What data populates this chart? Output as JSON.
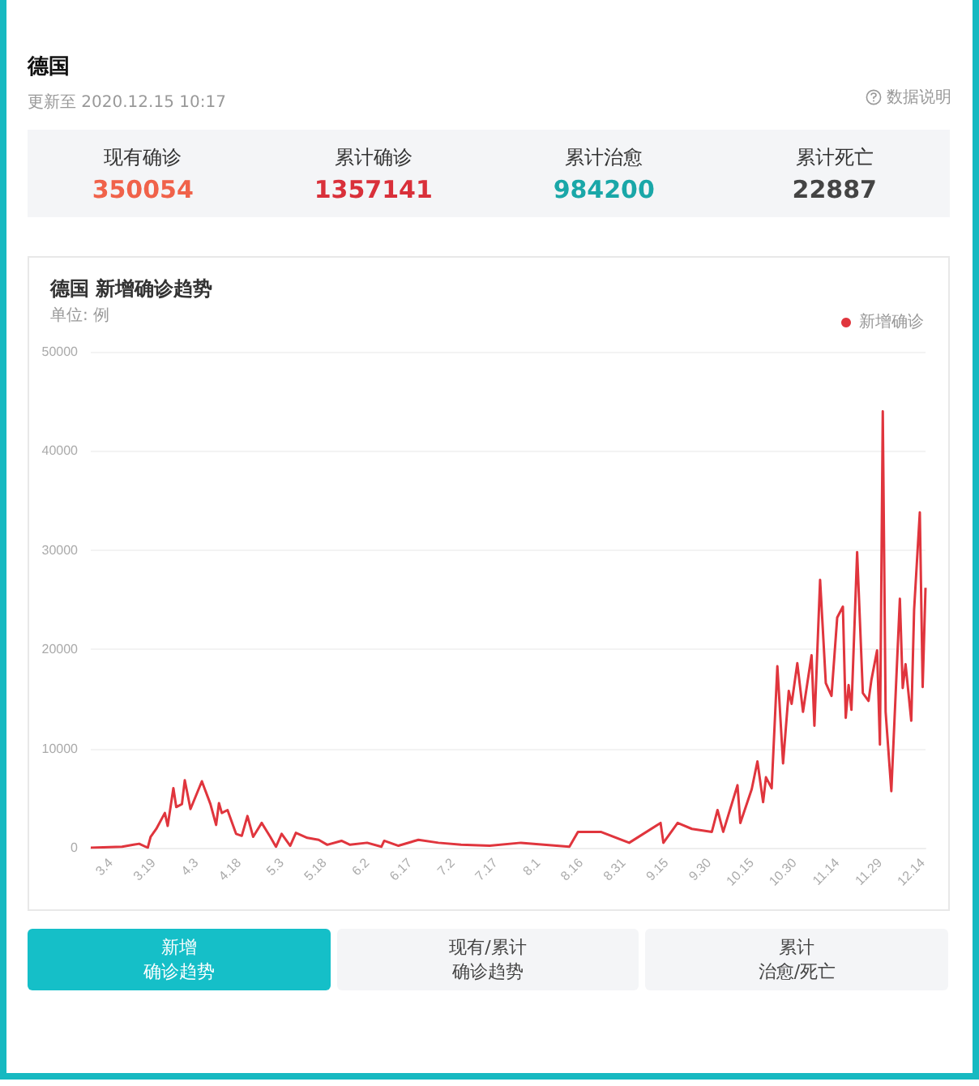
{
  "chart_data": [
    {
      "type": "other",
      "title": "德国",
      "subtitle": "更新至 2020.12.15 10:17",
      "annotations": [
        "数据说明"
      ],
      "categories": [
        "现有确诊",
        "累计确诊",
        "累计治愈",
        "累计死亡"
      ],
      "values": [
        350054,
        1357141,
        984200,
        22887
      ],
      "data_labels": true
    },
    {
      "type": "line",
      "title": "德国 新增确诊趋势",
      "subtitle": "单位: 例",
      "legend": "top right",
      "grid": "y",
      "marker": "none",
      "line_style": "solid",
      "annotations": [
        "新增",
        "确诊趋势",
        "现有/累计",
        "确诊趋势",
        "累计",
        "治愈/死亡"
      ],
      "xlim": [
        "--02-26",
        "--12-15"
      ],
      "ylim": [
        0,
        50000
      ],
      "yticks": [
        0,
        10000,
        20000,
        30000,
        40000,
        50000
      ],
      "xticks": [
        {
          "value": "--03-04",
          "label": "3.4"
        },
        {
          "value": "--03-19",
          "label": "3.19"
        },
        {
          "value": "--04-03",
          "label": "4.3"
        },
        {
          "value": "--04-18",
          "label": "4.18"
        },
        {
          "value": "--05-03",
          "label": "5.3"
        },
        {
          "value": "--05-18",
          "label": "5.18"
        },
        {
          "value": "--06-02",
          "label": "6.2"
        },
        {
          "value": "--06-17",
          "label": "6.17"
        },
        {
          "value": "--07-02",
          "label": "7.2"
        },
        {
          "value": "--07-17",
          "label": "7.17"
        },
        {
          "value": "--08-01",
          "label": "8.1"
        },
        {
          "value": "--08-16",
          "label": "8.16"
        },
        {
          "value": "--08-31",
          "label": "8.31"
        },
        {
          "value": "--09-15",
          "label": "9.15"
        },
        {
          "value": "--09-30",
          "label": "9.30"
        },
        {
          "value": "--10-15",
          "label": "10.15"
        },
        {
          "value": "--10-30",
          "label": "10.30"
        },
        {
          "value": "--11-14",
          "label": "11.14"
        },
        {
          "value": "--11-29",
          "label": "11.29"
        },
        {
          "value": "--12-14",
          "label": "12.14"
        }
      ],
      "series": [
        {
          "name": "新增确诊",
          "color": "#e0353d",
          "x": [
            "--02-26",
            "--03-08",
            "--03-12",
            "--03-14",
            "--03-17",
            "--03-18",
            "--03-20",
            "--03-23",
            "--03-24",
            "--03-26",
            "--03-27",
            "--03-29",
            "--03-30",
            "--04-01",
            "--04-05",
            "--04-08",
            "--04-10",
            "--04-11",
            "--04-12",
            "--04-14",
            "--04-17",
            "--04-19",
            "--04-21",
            "--04-23",
            "--04-26",
            "--04-29",
            "--05-01",
            "--05-03",
            "--05-06",
            "--05-08",
            "--05-12",
            "--05-16",
            "--05-19",
            "--05-24",
            "--05-27",
            "--06-02",
            "--06-07",
            "--06-08",
            "--06-13",
            "--06-20",
            "--06-27",
            "--07-05",
            "--07-15",
            "--07-26",
            "--08-12",
            "--08-15",
            "--08-23",
            "--09-02",
            "--09-13",
            "--09-14",
            "--09-19",
            "--09-24",
            "--10-01",
            "--10-03",
            "--10-05",
            "--10-10",
            "--10-11",
            "--10-15",
            "--10-17",
            "--10-19",
            "--10-20",
            "--10-22",
            "--10-24",
            "--10-26",
            "--10-28",
            "--10-29",
            "--10-31",
            "--11-02",
            "--11-05",
            "--11-06",
            "--11-08",
            "--11-10",
            "--11-12",
            "--11-14",
            "--11-16",
            "--11-17",
            "--11-18",
            "--11-19",
            "--11-21",
            "--11-23",
            "--11-25",
            "--11-26",
            "--11-28",
            "--11-29",
            "--11-30",
            "--12-01",
            "--12-03",
            "--12-06",
            "--12-07",
            "--12-08",
            "--12-10",
            "--12-11",
            "--12-13",
            "--12-14",
            "--12-15"
          ],
          "values": [
            0,
            100,
            300,
            400,
            0,
            1100,
            1900,
            3500,
            2200,
            6000,
            4100,
            4400,
            6800,
            3900,
            6700,
            4400,
            2300,
            4500,
            3500,
            3800,
            1400,
            1200,
            3200,
            1100,
            2500,
            1100,
            100,
            1400,
            200,
            1500,
            1000,
            800,
            300,
            700,
            300,
            500,
            100,
            700,
            200,
            800,
            500,
            300,
            200,
            500,
            100,
            1600,
            1600,
            500,
            2500,
            500,
            2500,
            1900,
            1600,
            3800,
            1600,
            6300,
            2500,
            5900,
            8700,
            4600,
            7100,
            6000,
            18300,
            8500,
            15800,
            14500,
            18600,
            13700,
            19400,
            12300,
            27000,
            16600,
            15300,
            23200,
            24300,
            13100,
            16400,
            13900,
            29800,
            15600,
            14800,
            16900,
            19900,
            10400,
            44000,
            13700,
            5700,
            25100,
            16100,
            18500,
            12800,
            24000,
            33800,
            16200,
            26200
          ]
        }
      ]
    }
  ]
}
